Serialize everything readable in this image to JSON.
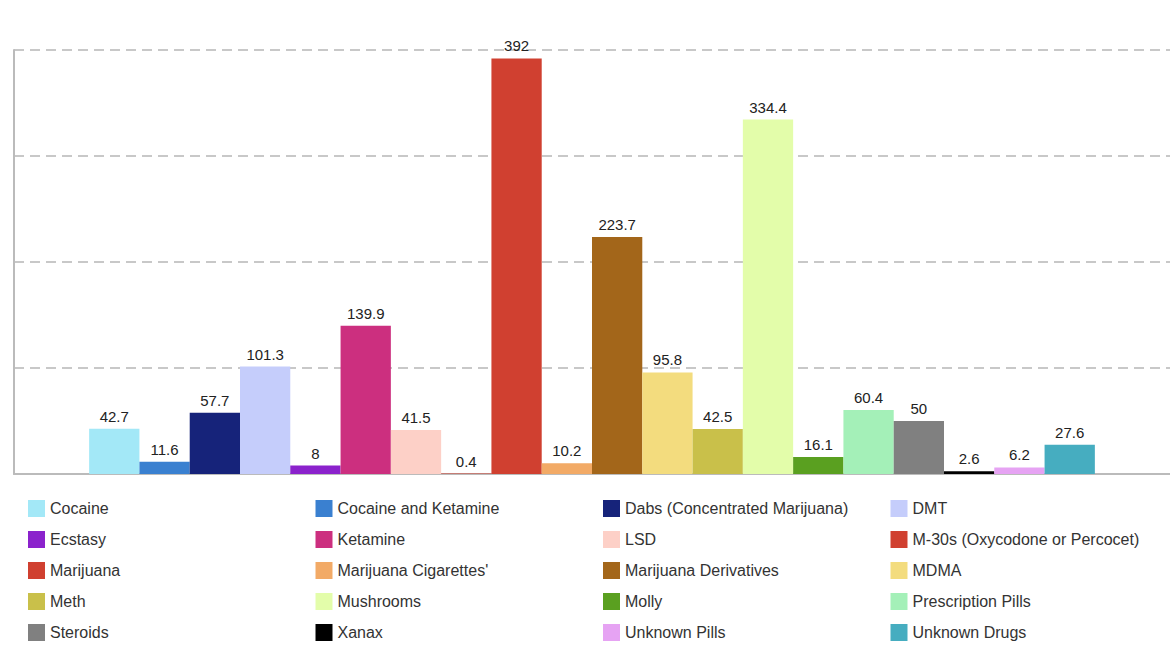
{
  "chart_data": {
    "type": "bar",
    "categories": [
      null
    ],
    "series": [
      {
        "name": "Cocaine",
        "color": "#a3e8f7",
        "values": [
          42.7
        ]
      },
      {
        "name": "Cocaine and Ketamine",
        "color": "#3a80d0",
        "values": [
          11.6
        ]
      },
      {
        "name": "Dabs (Concentrated Marijuana)",
        "color": "#16237a",
        "values": [
          57.7
        ]
      },
      {
        "name": "DMT",
        "color": "#c5cdfb",
        "values": [
          101.3
        ]
      },
      {
        "name": "Ecstasy",
        "color": "#8b22cc",
        "values": [
          8
        ]
      },
      {
        "name": "Ketamine",
        "color": "#cc2f7f",
        "values": [
          139.9
        ]
      },
      {
        "name": "LSD",
        "color": "#fdd0c7",
        "values": [
          41.5
        ]
      },
      {
        "name": "M-30s (Oxycodone or Percocet)",
        "color": "#d04030",
        "values": [
          0.4
        ]
      },
      {
        "name": "Marijuana",
        "color": "#d04030",
        "values": [
          392
        ]
      },
      {
        "name": "Marijuana Cigarettes'",
        "color": "#f2aa66",
        "values": [
          10.2
        ]
      },
      {
        "name": "Marijuana Derivatives",
        "color": "#a3661a",
        "values": [
          223.7
        ]
      },
      {
        "name": "MDMA",
        "color": "#f3dc7e",
        "values": [
          95.8
        ]
      },
      {
        "name": "Meth",
        "color": "#c9c04a",
        "values": [
          42.5
        ]
      },
      {
        "name": "Mushrooms",
        "color": "#e3fdaa",
        "values": [
          334.4
        ]
      },
      {
        "name": "Molly",
        "color": "#5aa020",
        "values": [
          16.1
        ]
      },
      {
        "name": "Prescription Pills",
        "color": "#a4f0b8",
        "values": [
          60.4
        ]
      },
      {
        "name": "Steroids",
        "color": "#808080",
        "values": [
          50
        ]
      },
      {
        "name": "Xanax",
        "color": "#000000",
        "values": [
          2.6
        ]
      },
      {
        "name": "Unknown Pills",
        "color": "#e6a3f3",
        "values": [
          6.2
        ]
      },
      {
        "name": "Unknown Drugs",
        "color": "#46adc0",
        "values": [
          27.6
        ]
      }
    ],
    "ylim": [
      0,
      400
    ],
    "yticks": [
      0,
      100,
      200,
      300,
      400
    ],
    "grid": true,
    "legend": "bottom",
    "data_labels": true,
    "tick_labels": false
  }
}
